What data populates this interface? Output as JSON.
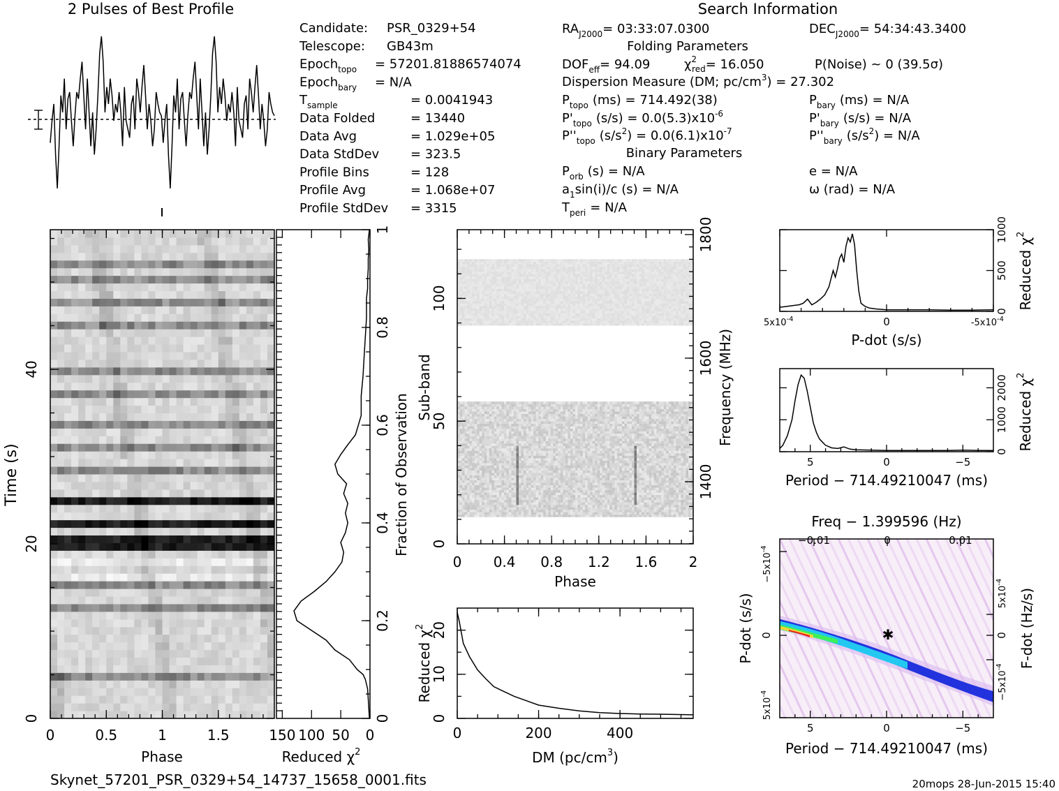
{
  "profile_title": "2 Pulses of Best Profile",
  "search_title": "Search Information",
  "folding_title": "Folding Parameters",
  "binary_title": "Binary Parameters",
  "filename": "Skynet_57201_PSR_0329+54_14737_15658_0001.fits",
  "footer_stamp": "20mops 28-Jun-2015 15:40",
  "info_left": [
    {
      "k": "Candidate:",
      "v": "PSR_0329+54"
    },
    {
      "k": "Telescope:",
      "v": "GB43m"
    },
    {
      "k": "Epoch",
      "sub": "topo",
      "v": "= 57201.81886574074"
    },
    {
      "k": "Epoch",
      "sub": "bary",
      "v": "= N/A"
    },
    {
      "k": "T",
      "sub": "sample",
      "v": "=  0.0041943"
    },
    {
      "k": "Data Folded",
      "v": "=  13440"
    },
    {
      "k": "Data Avg",
      "v": "=  1.029e+05"
    },
    {
      "k": "Data StdDev",
      "v": "=  323.5"
    },
    {
      "k": "Profile Bins",
      "v": "=  128"
    },
    {
      "k": "Profile Avg",
      "v": "=  1.068e+07"
    },
    {
      "k": "Profile StdDev",
      "v": "=  3315"
    }
  ],
  "info_mid": {
    "ra": "RA",
    "ra_sub": "J2000",
    "ra_val": "= 03:33:07.0300",
    "dec": "DEC",
    "dec_sub": "J2000",
    "dec_val": "= 54:34:43.3400",
    "dof": "DOF",
    "dof_sub": "eff",
    "dof_val": "= 94.09",
    "chi": "χ",
    "chi_sup": "2",
    "chi_sub": "red",
    "chi_val": "= 16.050",
    "pnoise": "P(Noise) ~ 0   (39.5σ)",
    "dm_line": "Dispersion Measure (DM; pc/cm",
    "dm_sup": "3",
    "dm_val": ") = 27.302",
    "ptopo": "P",
    "ptopo_sub": "topo",
    "ptopo_val": "(ms) =  714.492(38)",
    "pdtopo": "P'",
    "pdtopo_sub": "topo",
    "pdtopo_val": "(s/s) = 0.0(5.3)x10",
    "pdtopo_exp": "-6",
    "pddtopo": "P''",
    "pddtopo_sub": "topo",
    "pddtopo_val": "(s/s",
    "pddtopo_sup": "2",
    "pddtopo_val2": ") = 0.0(6.1)x10",
    "pddtopo_exp": "-7",
    "pbary": "P",
    "pbary_sub": "bary",
    "pbary_val": "(ms) = N/A",
    "pdbary": "P'",
    "pdbary_sub": "bary",
    "pdbary_val": "(s/s) = N/A",
    "pddbary": "P''",
    "pddbary_sub": "bary",
    "pddbary_val": "(s/s",
    "pddbary_sup": "2",
    "pddbary_val2": ") = N/A",
    "porb": "P",
    "porb_sub": "orb",
    "porb_val": "(s) = N/A",
    "a1": "a",
    "a1_sub": "1",
    "a1_val": "sin(i)/c (s) = N/A",
    "tperi": "T",
    "tperi_sub": "peri",
    "tperi_val": "= N/A",
    "e_val": "e = N/A",
    "omega_val": "ω (rad) = N/A"
  },
  "chart_data": [
    {
      "type": "heatmap",
      "id": "time-phase",
      "xlabel": "Phase",
      "ylabel": "Time (s)",
      "xticks": [
        "0",
        "0.5",
        "1",
        "1.5"
      ],
      "yticks": [
        "0",
        "20",
        "40"
      ],
      "xlim": [
        0,
        2
      ],
      "ylim": [
        0,
        56
      ],
      "subints": 64,
      "dark_rows": [
        5,
        14,
        17,
        22,
        23,
        25,
        28,
        32,
        35,
        38,
        42,
        45,
        51,
        54,
        57,
        59
      ],
      "very_dark_rows": [
        22,
        23,
        25,
        28
      ],
      "pulse_phase": [
        0.05,
        0.6
      ]
    },
    {
      "type": "line",
      "id": "time-chi",
      "xlabel": "Reduced χ",
      "xlabel_sup": "2",
      "xticks": [
        "150",
        "100",
        "50",
        "0"
      ],
      "right_label": "Fraction of Observation",
      "right_ticks": [
        "0",
        "0.2",
        "0.4",
        "0.6",
        "0.8",
        "1"
      ],
      "x": [
        1,
        2,
        3,
        4,
        5,
        6,
        8,
        12,
        22,
        35,
        60,
        75,
        100,
        125,
        130,
        118,
        95,
        75,
        60,
        48,
        45,
        50,
        42,
        38,
        42,
        38,
        45,
        40,
        55,
        60,
        50,
        38,
        25,
        20,
        15,
        15,
        12,
        10,
        8,
        6,
        6,
        4,
        4,
        3,
        3,
        2,
        3,
        1
      ],
      "y": [
        0,
        0.02,
        0.04,
        0.06,
        0.065,
        0.07,
        0.08,
        0.09,
        0.1,
        0.12,
        0.14,
        0.16,
        0.18,
        0.2,
        0.22,
        0.24,
        0.26,
        0.28,
        0.3,
        0.32,
        0.34,
        0.36,
        0.38,
        0.4,
        0.42,
        0.44,
        0.46,
        0.48,
        0.5,
        0.52,
        0.54,
        0.56,
        0.58,
        0.6,
        0.62,
        0.66,
        0.7,
        0.74,
        0.78,
        0.82,
        0.86,
        0.88,
        0.9,
        0.92,
        0.94,
        0.96,
        0.98,
        1.0
      ]
    },
    {
      "type": "heatmap",
      "id": "subband-phase",
      "xlabel": "Phase",
      "ylabel": "Sub-band",
      "right_label": "Frequency (MHz)",
      "xticks": [
        "0",
        "0.4",
        "0.8",
        "1.2",
        "1.6",
        "2"
      ],
      "yticks": [
        "0",
        "50",
        "100"
      ],
      "right_ticks": [
        "1400",
        "1600",
        "1800"
      ],
      "xlim": [
        0,
        2
      ],
      "ylim": [
        0,
        128
      ],
      "bands": [
        [
          11,
          58
        ],
        [
          89,
          116
        ]
      ],
      "pulse_phase": [
        0.5,
        1.5
      ]
    },
    {
      "type": "line",
      "id": "dm-chi",
      "xlabel": "DM (pc/cm",
      "xlabel_sup": "3",
      "ylabel": "Reduced χ",
      "ylabel_sup": "2",
      "xticks": [
        "0",
        "200",
        "400"
      ],
      "yticks": [
        "0",
        "10",
        "20"
      ],
      "xlim": [
        0,
        580
      ],
      "ylim": [
        0,
        25
      ],
      "x": [
        0,
        5,
        15,
        30,
        50,
        70,
        90,
        110,
        140,
        170,
        200,
        250,
        300,
        350,
        400,
        450,
        500,
        580
      ],
      "y": [
        24,
        22,
        17,
        14,
        11,
        9,
        7.2,
        6.3,
        5,
        4,
        3,
        2.3,
        1.7,
        1.3,
        1.1,
        1.0,
        0.95,
        0.8
      ]
    },
    {
      "type": "line",
      "id": "pdot-chi",
      "xlabel": "P-dot (s/s)",
      "ylabel": "Reduced χ",
      "ylabel_sup": "2",
      "xticks": [
        "5x10",
        "0",
        "-5x10"
      ],
      "xtick_exp": "-4",
      "yticks": [
        "0",
        "500",
        "1000"
      ],
      "xlim": [
        5,
        -5
      ],
      "ylim": [
        0,
        1000
      ],
      "x": [
        5,
        4.7,
        4.4,
        4.1,
        3.9,
        3.7,
        3.5,
        3.3,
        3.1,
        2.9,
        2.7,
        2.6,
        2.5,
        2.4,
        2.3,
        2.2,
        2.1,
        2.0,
        1.9,
        1.8,
        1.7,
        1.6,
        1.5,
        1.4,
        1.3,
        1.2,
        1.0,
        0.8,
        0.5,
        0,
        -1,
        -2,
        -3,
        -4,
        -5
      ],
      "y": [
        50,
        60,
        70,
        80,
        100,
        150,
        80,
        110,
        150,
        200,
        300,
        400,
        500,
        420,
        520,
        650,
        700,
        600,
        800,
        900,
        850,
        950,
        820,
        500,
        250,
        100,
        60,
        40,
        30,
        20,
        20,
        20,
        15,
        15,
        20
      ]
    },
    {
      "type": "line",
      "id": "period-chi",
      "xlabel": "Period − 714.49210047 (ms)",
      "ylabel": "Reduced χ",
      "ylabel_sup": "2",
      "xticks": [
        "5",
        "0",
        "−5"
      ],
      "yticks": [
        "0",
        "1000",
        "2000"
      ],
      "xlim": [
        7,
        -7
      ],
      "ylim": [
        0,
        2600
      ],
      "x": [
        7,
        6.8,
        6.5,
        6.2,
        6.0,
        5.8,
        5.6,
        5.4,
        5.2,
        5.0,
        4.8,
        4.6,
        4.4,
        4.2,
        4.0,
        3.6,
        3.2,
        2.8,
        2.4,
        2,
        1,
        0,
        -1,
        -2,
        -3,
        -4,
        -5,
        -6,
        -7
      ],
      "y": [
        100,
        200,
        500,
        1000,
        1600,
        2100,
        2400,
        2300,
        1900,
        1400,
        900,
        600,
        400,
        300,
        200,
        120,
        100,
        150,
        80,
        60,
        50,
        40,
        40,
        40,
        40,
        40,
        50,
        40,
        40
      ]
    },
    {
      "type": "heatmap",
      "id": "period-pdot",
      "xlabel": "Period − 714.49210047 (ms)",
      "ylabel": "P-dot (s/s)",
      "top_label": "Freq − 1.399596 (Hz)",
      "right_label": "F-dot (Hz/s)",
      "xticks": [
        "5",
        "0",
        "−5"
      ],
      "top_ticks": [
        "−0.01",
        "0",
        "0.01"
      ],
      "yticks": [
        "5x10",
        "0",
        "−5x10"
      ],
      "ytick_exp": "-4",
      "right_ticks": [
        "5x10",
        "0",
        "−5x10"
      ],
      "right_exp": "-4",
      "xlim": [
        7,
        -7
      ],
      "ylim": [
        5,
        -5
      ]
    }
  ],
  "profile_chart": {
    "type": "line",
    "values": [
      0.32,
      0.45,
      0.55,
      0.25,
      0.05,
      0.3,
      0.6,
      0.5,
      0.7,
      0.4,
      0.58,
      0.62,
      0.45,
      0.3,
      0.48,
      0.62,
      0.58,
      0.7,
      0.8,
      0.6,
      0.4,
      0.7,
      0.5,
      0.3,
      0.5,
      0.25,
      0.4,
      0.6,
      0.85,
      0.95,
      0.8,
      0.5,
      0.65,
      0.55,
      0.7,
      0.6,
      0.45,
      0.55,
      0.5,
      0.62,
      0.5,
      0.3,
      0.65,
      0.45,
      0.4,
      0.35,
      0.55,
      0.6,
      0.4,
      0.7,
      0.62,
      0.5,
      0.65,
      0.78,
      0.6,
      0.4,
      0.55,
      0.45,
      0.3,
      0.4,
      0.62,
      0.55,
      0.5,
      0.48,
      0.32,
      0.45,
      0.55,
      0.25,
      0.05,
      0.3,
      0.6,
      0.5,
      0.7,
      0.4,
      0.58,
      0.62,
      0.45,
      0.3,
      0.48,
      0.62,
      0.58,
      0.7,
      0.8,
      0.6,
      0.4,
      0.7,
      0.5,
      0.3,
      0.5,
      0.25,
      0.4,
      0.6,
      0.85,
      0.95,
      0.8,
      0.5,
      0.65,
      0.55,
      0.7,
      0.6,
      0.45,
      0.55,
      0.5,
      0.62,
      0.5,
      0.3,
      0.65,
      0.45,
      0.4,
      0.35,
      0.55,
      0.6,
      0.4,
      0.7,
      0.62,
      0.5,
      0.65,
      0.78,
      0.6,
      0.4,
      0.55,
      0.45,
      0.3,
      0.4,
      0.62,
      0.55,
      0.5,
      0.48
    ]
  }
}
